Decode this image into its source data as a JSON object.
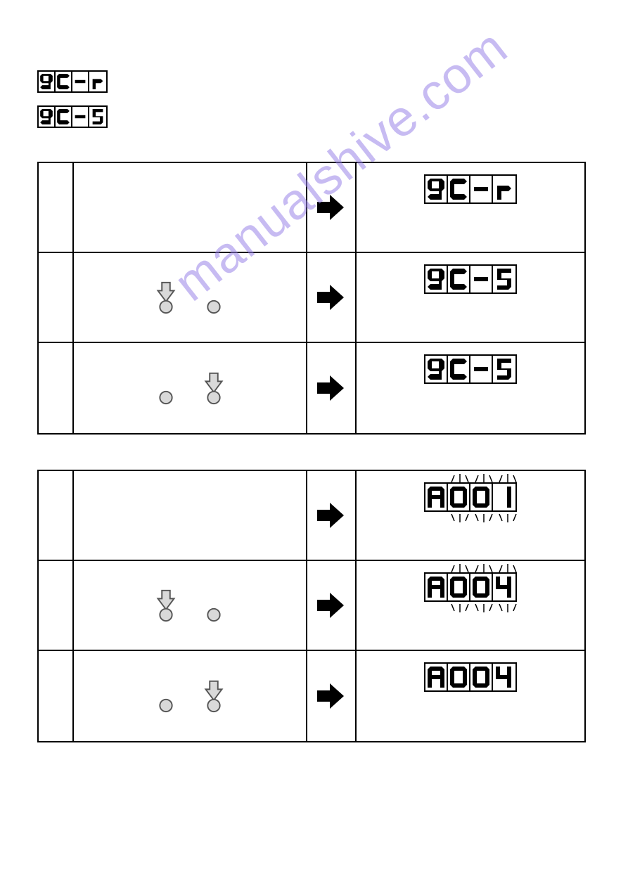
{
  "header": {
    "display1": [
      "9",
      "C",
      "-",
      "r"
    ],
    "display2": [
      "9",
      "C",
      "-",
      "5"
    ]
  },
  "watermark": "manualshive.com",
  "table1": {
    "rows": [
      {
        "action": "none",
        "result": [
          "9",
          "C",
          "-",
          "r"
        ],
        "flashing": [
          false,
          false,
          false,
          false
        ]
      },
      {
        "action": "left",
        "result": [
          "9",
          "C",
          "-",
          "5"
        ],
        "flashing": [
          false,
          false,
          false,
          false
        ]
      },
      {
        "action": "right",
        "result": [
          "9",
          "C",
          "-",
          "5"
        ],
        "flashing": [
          false,
          false,
          false,
          false
        ]
      }
    ]
  },
  "table2": {
    "rows": [
      {
        "action": "none",
        "result": [
          "A",
          "0",
          "0",
          "1"
        ],
        "flashing": [
          false,
          true,
          true,
          true
        ]
      },
      {
        "action": "left",
        "result": [
          "A",
          "0",
          "0",
          "4"
        ],
        "flashing": [
          false,
          true,
          true,
          true
        ]
      },
      {
        "action": "right",
        "result": [
          "A",
          "0",
          "0",
          "4"
        ],
        "flashing": [
          false,
          false,
          false,
          false
        ]
      }
    ]
  },
  "colors": {
    "black": "#000000",
    "buttonFill": "#d9d9d9",
    "buttonStroke": "#555555"
  }
}
